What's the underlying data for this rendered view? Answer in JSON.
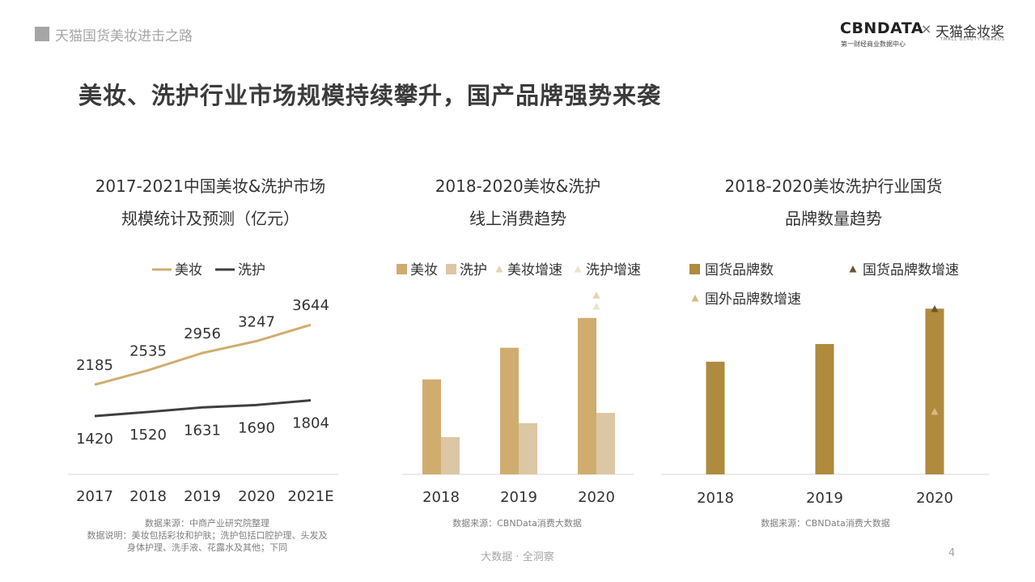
{
  "header": {
    "title": "天猫国货美妆进击之路"
  },
  "logo": {
    "cbndata": "CBNDATA",
    "cbndata_sub": "第一财经商业数据中心",
    "times": "×",
    "tmall": "天猫金妆奖",
    "tmall_sub": "TMALL BEAUTY AWARDS"
  },
  "main_title": "美妆、洗护行业市场规模持续攀升，国产品牌强势来袭",
  "footer": {
    "center": "大数据 · 全洞察",
    "page": "4"
  },
  "colors": {
    "beauty": "#d0ad6e",
    "care": "#dcc7a4",
    "line_care": "#3f3f3f",
    "brand": "#b08a3e",
    "brand_growth": "#6b5530",
    "foreign_growth": "#d9b981",
    "beauty_growth": "#e3d4b3",
    "care_growth": "#ece3cf"
  },
  "chart_data": [
    {
      "type": "line",
      "title_lines": [
        "2017-2021中国美妆&洗护市场",
        "规模统计及预测（亿元）"
      ],
      "categories": [
        "2017",
        "2018",
        "2019",
        "2020",
        "2021E"
      ],
      "series": [
        {
          "name": "美妆",
          "values": [
            2185,
            2535,
            2956,
            3247,
            3644
          ]
        },
        {
          "name": "洗护",
          "values": [
            1420,
            1520,
            1631,
            1690,
            1804
          ]
        }
      ],
      "ylim": [
        0,
        4500
      ],
      "legend": "top",
      "grid": false,
      "notes": [
        "数据来源：中商产业研究院整理",
        "数据说明：美妆包括彩妆和护肤；洗护包括口腔护理、头发及",
        "身体护理、洗手液、花露水及其他；下同"
      ]
    },
    {
      "type": "bar",
      "title_lines": [
        "2018-2020美妆&洗护",
        "线上消费趋势"
      ],
      "categories": [
        "2018",
        "2019",
        "2020"
      ],
      "series": [
        {
          "name": "美妆",
          "values": [
            51,
            68,
            84
          ]
        },
        {
          "name": "洗护",
          "values": [
            20,
            27.5,
            33
          ]
        },
        {
          "name": "美妆增速",
          "values": [
            null,
            null,
            96
          ]
        },
        {
          "name": "洗护增速",
          "values": [
            null,
            null,
            90
          ]
        }
      ],
      "ylim": [
        0,
        100
      ],
      "legend": "top",
      "grid": false,
      "notes": [
        "数据来源：CBNData消费大数据"
      ]
    },
    {
      "type": "bar",
      "title_lines": [
        "2018-2020美妆洗护行业国货",
        "品牌数量趋势"
      ],
      "categories": [
        "2018",
        "2019",
        "2020"
      ],
      "series": [
        {
          "name": "国货品牌数",
          "values": [
            60.5,
            70,
            89
          ]
        },
        {
          "name": "国货品牌数增速",
          "values": [
            null,
            null,
            90
          ]
        },
        {
          "name": "国外品牌数增速",
          "values": [
            null,
            null,
            33.5
          ]
        }
      ],
      "ylim": [
        0,
        100
      ],
      "legend": "top",
      "grid": false,
      "notes": [
        "数据来源：CBNData消费大数据"
      ]
    }
  ]
}
